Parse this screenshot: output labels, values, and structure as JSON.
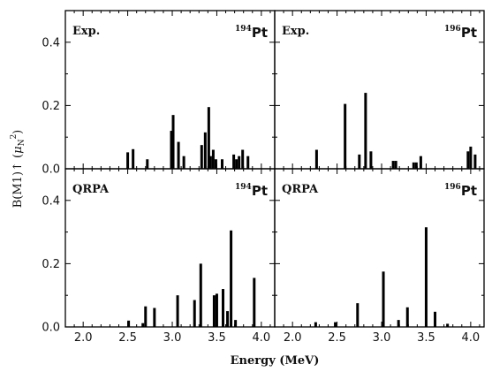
{
  "chart_data": {
    "type": "bar",
    "xlabel": "Energy (MeV)",
    "ylabel": {
      "main": "B(M1)↑ (",
      "mu": "μ",
      "sub": "N",
      "sup": "2",
      "close": ")"
    },
    "xlim": [
      1.8,
      4.15
    ],
    "x_ticks": [
      "2.0",
      "2.5",
      "3.0",
      "3.5",
      "4.0"
    ],
    "x_tick_values": [
      2.0,
      2.5,
      3.0,
      3.5,
      4.0
    ],
    "panels": [
      {
        "row": 0,
        "col": 0,
        "label": "Exp.",
        "nucleus": {
          "mass": "194",
          "symbol": "Pt"
        },
        "ylim": [
          0,
          0.5
        ],
        "y_ticks": [
          "0.0",
          "0.2",
          "0.4"
        ],
        "y_tick_values": [
          0.0,
          0.2,
          0.4
        ],
        "bars": [
          {
            "x": 2.5,
            "y": 0.052
          },
          {
            "x": 2.56,
            "y": 0.062
          },
          {
            "x": 2.72,
            "y": 0.03
          },
          {
            "x": 2.99,
            "y": 0.12
          },
          {
            "x": 3.01,
            "y": 0.17
          },
          {
            "x": 3.07,
            "y": 0.085
          },
          {
            "x": 3.13,
            "y": 0.04
          },
          {
            "x": 3.33,
            "y": 0.075
          },
          {
            "x": 3.37,
            "y": 0.115
          },
          {
            "x": 3.41,
            "y": 0.195
          },
          {
            "x": 3.43,
            "y": 0.04
          },
          {
            "x": 3.46,
            "y": 0.06
          },
          {
            "x": 3.49,
            "y": 0.03
          },
          {
            "x": 3.56,
            "y": 0.03
          },
          {
            "x": 3.69,
            "y": 0.045
          },
          {
            "x": 3.72,
            "y": 0.03
          },
          {
            "x": 3.75,
            "y": 0.04
          },
          {
            "x": 3.79,
            "y": 0.06
          },
          {
            "x": 3.85,
            "y": 0.04
          }
        ]
      },
      {
        "row": 0,
        "col": 1,
        "label": "Exp.",
        "nucleus": {
          "mass": "196",
          "symbol": "Pt"
        },
        "ylim": [
          0,
          0.5
        ],
        "y_ticks": [
          "0.0",
          "0.2",
          "0.4"
        ],
        "y_tick_values": [
          0.0,
          0.2,
          0.4
        ],
        "bars": [
          {
            "x": 2.27,
            "y": 0.06
          },
          {
            "x": 2.59,
            "y": 0.205
          },
          {
            "x": 2.75,
            "y": 0.045
          },
          {
            "x": 2.82,
            "y": 0.24
          },
          {
            "x": 2.88,
            "y": 0.055
          },
          {
            "x": 3.13,
            "y": 0.025
          },
          {
            "x": 3.16,
            "y": 0.025
          },
          {
            "x": 3.36,
            "y": 0.02
          },
          {
            "x": 3.39,
            "y": 0.02
          },
          {
            "x": 3.44,
            "y": 0.04
          },
          {
            "x": 3.97,
            "y": 0.055
          },
          {
            "x": 4.0,
            "y": 0.07
          },
          {
            "x": 4.05,
            "y": 0.045
          }
        ]
      },
      {
        "row": 1,
        "col": 0,
        "label": "QRPA",
        "nucleus": {
          "mass": "194",
          "symbol": "Pt"
        },
        "ylim": [
          0,
          0.5
        ],
        "y_ticks": [
          "0.0",
          "0.2",
          "0.4"
        ],
        "y_tick_values": [
          0.0,
          0.2,
          0.4
        ],
        "bars": [
          {
            "x": 2.51,
            "y": 0.02
          },
          {
            "x": 2.67,
            "y": 0.012
          },
          {
            "x": 2.7,
            "y": 0.065
          },
          {
            "x": 2.8,
            "y": 0.06
          },
          {
            "x": 3.06,
            "y": 0.1
          },
          {
            "x": 3.25,
            "y": 0.085
          },
          {
            "x": 3.32,
            "y": 0.2
          },
          {
            "x": 3.47,
            "y": 0.1
          },
          {
            "x": 3.5,
            "y": 0.105
          },
          {
            "x": 3.57,
            "y": 0.12
          },
          {
            "x": 3.62,
            "y": 0.05
          },
          {
            "x": 3.66,
            "y": 0.305
          },
          {
            "x": 3.71,
            "y": 0.022
          },
          {
            "x": 3.92,
            "y": 0.155
          }
        ]
      },
      {
        "row": 1,
        "col": 1,
        "label": "QRPA",
        "nucleus": {
          "mass": "196",
          "symbol": "Pt"
        },
        "ylim": [
          0,
          0.5
        ],
        "y_ticks": [
          "0.0",
          "0.2",
          "0.4"
        ],
        "y_tick_values": [
          0.0,
          0.2,
          0.4
        ],
        "bars": [
          {
            "x": 2.26,
            "y": 0.015
          },
          {
            "x": 2.48,
            "y": 0.015
          },
          {
            "x": 2.73,
            "y": 0.075
          },
          {
            "x": 3.02,
            "y": 0.175
          },
          {
            "x": 3.19,
            "y": 0.022
          },
          {
            "x": 3.29,
            "y": 0.062
          },
          {
            "x": 3.5,
            "y": 0.315
          },
          {
            "x": 3.6,
            "y": 0.048
          },
          {
            "x": 3.74,
            "y": 0.01
          }
        ]
      }
    ]
  }
}
